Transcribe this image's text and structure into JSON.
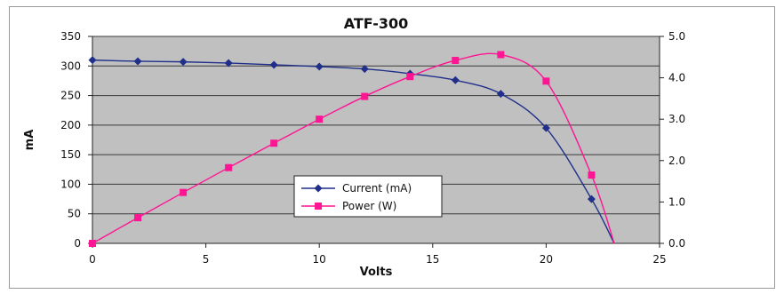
{
  "chart_data": {
    "type": "line",
    "title": "ATF-300",
    "xlabel": "Volts",
    "ylabel": "mA",
    "y2label": "",
    "xlim": [
      0,
      25
    ],
    "ylim": [
      0,
      350
    ],
    "y2lim": [
      0.0,
      5.0
    ],
    "x_ticks": [
      "0",
      "5",
      "10",
      "15",
      "20",
      "25"
    ],
    "y_ticks": [
      "0",
      "50",
      "100",
      "150",
      "200",
      "250",
      "300",
      "350"
    ],
    "y2_ticks": [
      "0.0",
      "1.0",
      "2.0",
      "3.0",
      "4.0",
      "5.0"
    ],
    "grid": true,
    "plot_background": "#c0c0c0",
    "legend_position": "lower-center",
    "series": [
      {
        "name": "Current (mA)",
        "axis": "left",
        "color": "#1f2f8a",
        "marker": "diamond",
        "x": [
          0,
          2,
          4,
          6,
          8,
          10,
          12,
          14,
          16,
          18,
          20,
          22,
          23
        ],
        "y": [
          310,
          308,
          307,
          305,
          302,
          299,
          295,
          287,
          276,
          253,
          195,
          75,
          0
        ]
      },
      {
        "name": "Power (W)",
        "axis": "right",
        "color": "#ff1493",
        "marker": "square",
        "x": [
          0,
          2,
          4,
          6,
          8,
          10,
          12,
          14,
          16,
          18,
          20,
          22,
          23
        ],
        "y": [
          0.0,
          0.62,
          1.23,
          1.83,
          2.42,
          3.0,
          3.55,
          4.03,
          4.42,
          4.56,
          3.92,
          1.65,
          0.0
        ]
      }
    ]
  }
}
